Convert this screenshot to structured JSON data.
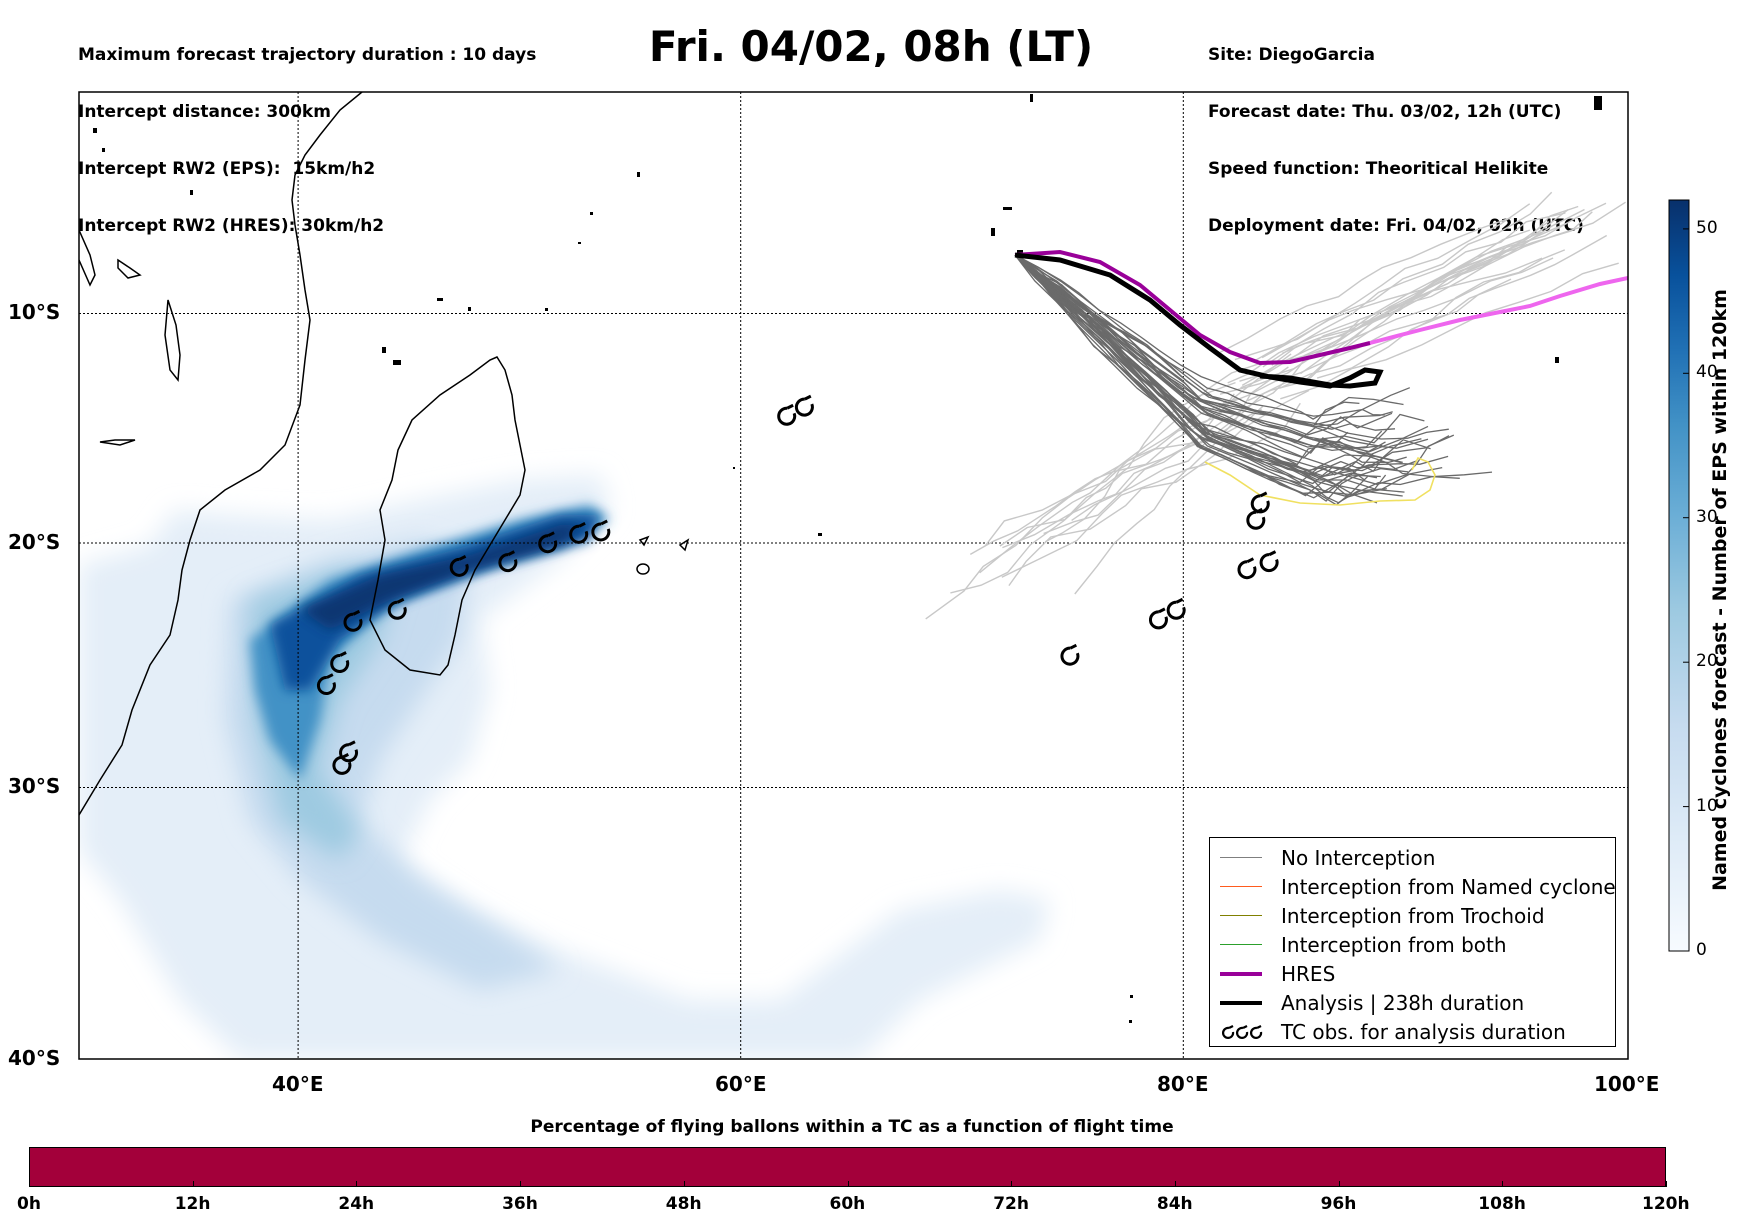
{
  "header": {
    "left": [
      "Maximum forecast trajectory duration : 10 days",
      "Intercept distance: 300km",
      "Intercept RW2 (EPS):  15km/h2",
      "Intercept RW2 (HRES): 30km/h2"
    ],
    "title": "Fri. 04/02, 08h (LT)",
    "right": [
      "Site: DiegoGarcia",
      "Forecast date: Thu. 03/02, 12h (UTC)",
      "Speed function: Theoritical Helikite",
      "Deployment date: Fri. 04/02, 02h (UTC)"
    ]
  },
  "map": {
    "lat_labels": [
      "10°S",
      "20°S",
      "30°S",
      "40°S"
    ],
    "lon_labels": [
      "40°E",
      "60°E",
      "80°E",
      "100°E"
    ],
    "extent": {
      "lon_min": 30,
      "lon_max": 100,
      "lat_min": -40,
      "lat_max": 0
    }
  },
  "colorbar": {
    "title": "Named cyclones forecast - Number of EPS within 120km",
    "ticks": [
      "0",
      "10",
      "20",
      "30",
      "40",
      "50"
    ],
    "range": [
      0,
      52
    ],
    "colors": [
      "#f7fbff",
      "#deebf7",
      "#c6dbef",
      "#9ecae1",
      "#6baed6",
      "#4292c6",
      "#2171b5",
      "#08519c",
      "#08306b"
    ]
  },
  "legend": {
    "items": [
      {
        "label": "No Interception",
        "color": "#7f7f7f",
        "style": "thin"
      },
      {
        "label": "Interception from Named cyclone",
        "color": "#ff5b1e",
        "style": "thin"
      },
      {
        "label": "Interception from Trochoid",
        "color": "#808000",
        "style": "thin"
      },
      {
        "label": "Interception from both",
        "color": "#2ca02c",
        "style": "thin"
      },
      {
        "label": "HRES",
        "color": "#990099",
        "style": "thick"
      },
      {
        "label": "Analysis | 238h duration",
        "color": "#000000",
        "style": "thick"
      },
      {
        "label": "TC obs. for analysis duration",
        "color": "#000000",
        "style": "symbol"
      }
    ]
  },
  "flight_bar": {
    "title": "Percentage of flying ballons within a TC as a function of flight time",
    "color": "#a3003a",
    "ticks": [
      "0h",
      "12h",
      "24h",
      "36h",
      "48h",
      "60h",
      "72h",
      "84h",
      "96h",
      "108h",
      "120h"
    ]
  },
  "tc_obs_icon": "cyclone-symbol",
  "tc_observations": [
    [
      62.0,
      -14.5
    ],
    [
      62.8,
      -14.1
    ],
    [
      53.6,
      -19.5
    ],
    [
      52.6,
      -19.6
    ],
    [
      51.2,
      -20.0
    ],
    [
      49.4,
      -20.8
    ],
    [
      47.2,
      -21.0
    ],
    [
      44.4,
      -22.8
    ],
    [
      42.4,
      -23.3
    ],
    [
      41.8,
      -25.0
    ],
    [
      41.2,
      -25.9
    ],
    [
      42.2,
      -28.6
    ],
    [
      41.9,
      -29.1
    ],
    [
      83.4,
      -18.3
    ],
    [
      83.2,
      -19.0
    ],
    [
      82.8,
      -21.1
    ],
    [
      83.8,
      -20.8
    ],
    [
      79.6,
      -22.8
    ],
    [
      78.8,
      -23.2
    ],
    [
      74.8,
      -24.7
    ]
  ]
}
